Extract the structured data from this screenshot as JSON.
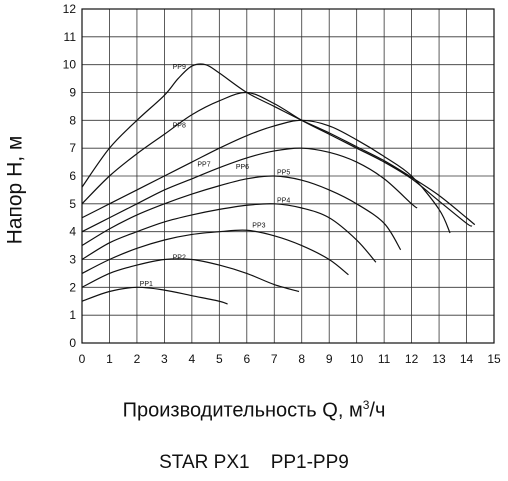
{
  "chart_data": {
    "type": "line",
    "title": "STAR PX1    PP1-PP9",
    "xlabel_main": "Производительность Q, м",
    "xlabel_sup": "3",
    "xlabel_tail": "/ч",
    "ylabel": "Напор H, м",
    "xlim": [
      0,
      15
    ],
    "ylim": [
      0,
      12
    ],
    "xticks": [
      0,
      1,
      2,
      3,
      4,
      5,
      6,
      7,
      8,
      9,
      10,
      11,
      12,
      13,
      14,
      15
    ],
    "yticks": [
      0,
      1,
      2,
      3,
      4,
      5,
      6,
      7,
      8,
      9,
      10,
      11,
      12
    ],
    "grid": true,
    "series": [
      {
        "name": "PP1",
        "label_at": [
          2.1,
          2.05
        ],
        "points": [
          [
            0,
            1.5
          ],
          [
            1,
            1.85
          ],
          [
            2,
            2.0
          ],
          [
            3,
            1.9
          ],
          [
            4,
            1.7
          ],
          [
            5,
            1.5
          ],
          [
            5.3,
            1.4
          ]
        ]
      },
      {
        "name": "PP2",
        "label_at": [
          3.3,
          3.0
        ],
        "points": [
          [
            0,
            2.0
          ],
          [
            1,
            2.5
          ],
          [
            2,
            2.8
          ],
          [
            3,
            3.0
          ],
          [
            4,
            3.0
          ],
          [
            5,
            2.8
          ],
          [
            6,
            2.5
          ],
          [
            7,
            2.1
          ],
          [
            7.9,
            1.85
          ]
        ]
      },
      {
        "name": "PP3",
        "label_at": [
          6.2,
          4.15
        ],
        "points": [
          [
            0,
            2.5
          ],
          [
            1,
            3.0
          ],
          [
            2,
            3.4
          ],
          [
            3,
            3.7
          ],
          [
            4,
            3.9
          ],
          [
            5,
            4.0
          ],
          [
            6,
            4.05
          ],
          [
            7,
            3.85
          ],
          [
            8,
            3.5
          ],
          [
            9,
            3.0
          ],
          [
            9.7,
            2.45
          ]
        ]
      },
      {
        "name": "PP4",
        "label_at": [
          7.1,
          5.05
        ],
        "points": [
          [
            0,
            3.0
          ],
          [
            1,
            3.6
          ],
          [
            2,
            4.0
          ],
          [
            3,
            4.35
          ],
          [
            4,
            4.6
          ],
          [
            5,
            4.8
          ],
          [
            6,
            4.95
          ],
          [
            7,
            5.0
          ],
          [
            8,
            4.85
          ],
          [
            9,
            4.5
          ],
          [
            10,
            3.7
          ],
          [
            10.7,
            2.9
          ]
        ]
      },
      {
        "name": "PP5",
        "label_at": [
          7.1,
          6.05
        ],
        "points": [
          [
            0,
            3.5
          ],
          [
            1,
            4.1
          ],
          [
            2,
            4.6
          ],
          [
            3,
            5.0
          ],
          [
            4,
            5.35
          ],
          [
            5,
            5.65
          ],
          [
            6,
            5.9
          ],
          [
            7,
            6.0
          ],
          [
            8,
            5.85
          ],
          [
            9,
            5.5
          ],
          [
            10,
            5.0
          ],
          [
            11,
            4.3
          ],
          [
            11.6,
            3.35
          ]
        ]
      },
      {
        "name": "PP6",
        "label_at": [
          5.6,
          6.25
        ],
        "points": [
          [
            0,
            4.0
          ],
          [
            1,
            4.5
          ],
          [
            2,
            5.0
          ],
          [
            3,
            5.5
          ],
          [
            4,
            5.9
          ],
          [
            5,
            6.3
          ],
          [
            6,
            6.65
          ],
          [
            7,
            6.9
          ],
          [
            8,
            7.0
          ],
          [
            9,
            6.85
          ],
          [
            10,
            6.5
          ],
          [
            11,
            5.9
          ],
          [
            12,
            5.0
          ],
          [
            12.2,
            4.85
          ]
        ]
      },
      {
        "name": "PP7",
        "label_at": [
          4.2,
          6.35
        ],
        "points": [
          [
            0,
            4.5
          ],
          [
            1,
            5.0
          ],
          [
            2,
            5.5
          ],
          [
            3,
            6.0
          ],
          [
            4,
            6.5
          ],
          [
            5,
            7.0
          ],
          [
            6,
            7.45
          ],
          [
            7,
            7.8
          ],
          [
            8,
            8.0
          ],
          [
            9,
            7.8
          ],
          [
            10,
            7.3
          ],
          [
            11,
            6.7
          ],
          [
            12,
            6.0
          ],
          [
            13,
            4.8
          ],
          [
            13.4,
            3.95
          ]
        ]
      },
      {
        "name": "PP8",
        "label_at": [
          3.3,
          7.75
        ],
        "points": [
          [
            0,
            5.0
          ],
          [
            1,
            6.0
          ],
          [
            2,
            6.8
          ],
          [
            3,
            7.5
          ],
          [
            4,
            8.2
          ],
          [
            5,
            8.7
          ],
          [
            6,
            9.0
          ],
          [
            7,
            8.6
          ],
          [
            8,
            8.0
          ],
          [
            9,
            7.5
          ],
          [
            10,
            7.0
          ],
          [
            11,
            6.5
          ],
          [
            12,
            5.9
          ],
          [
            13,
            5.1
          ],
          [
            14,
            4.3
          ],
          [
            14.2,
            4.2
          ]
        ]
      },
      {
        "name": "PP9",
        "label_at": [
          3.3,
          9.85
        ],
        "points": [
          [
            0,
            5.6
          ],
          [
            1,
            7.0
          ],
          [
            2,
            8.0
          ],
          [
            3,
            8.9
          ],
          [
            3.5,
            9.5
          ],
          [
            4,
            9.95
          ],
          [
            4.5,
            10.0
          ],
          [
            5,
            9.7
          ],
          [
            6,
            9.0
          ],
          [
            7,
            8.5
          ],
          [
            8,
            8.0
          ],
          [
            9,
            7.55
          ],
          [
            10,
            7.05
          ],
          [
            11,
            6.55
          ],
          [
            12,
            5.95
          ],
          [
            13,
            5.3
          ],
          [
            14,
            4.5
          ],
          [
            14.3,
            4.25
          ]
        ]
      }
    ]
  }
}
